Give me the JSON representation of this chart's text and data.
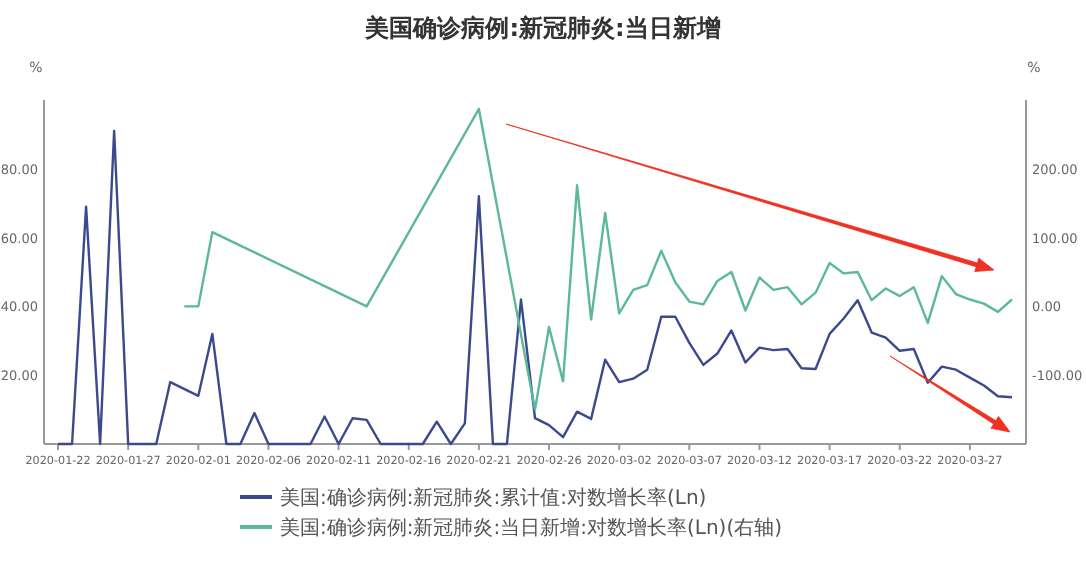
{
  "chart_data": {
    "type": "line",
    "title": "美国确诊病例:新冠肺炎:当日新增",
    "ylabel": "%",
    "y2label": "%",
    "xlim": [
      "2020-01-21",
      "2020-03-31"
    ],
    "xticks": [
      "2020-01-22",
      "2020-01-27",
      "2020-02-01",
      "2020-02-06",
      "2020-02-11",
      "2020-02-16",
      "2020-02-21",
      "2020-02-26",
      "2020-03-02",
      "2020-03-07",
      "2020-03-12",
      "2020-03-17",
      "2020-03-22",
      "2020-03-27"
    ],
    "ylim": [
      0,
      100
    ],
    "yticks": [
      {
        "value": 20,
        "label": "20.00"
      },
      {
        "value": 40,
        "label": "40.00"
      },
      {
        "value": 60,
        "label": "60.00"
      },
      {
        "value": 80,
        "label": "80.00"
      }
    ],
    "y2lim": [
      -200,
      300
    ],
    "y2ticks": [
      {
        "value": -100,
        "label": "-100.00"
      },
      {
        "value": 0,
        "label": "0.00"
      },
      {
        "value": 100,
        "label": "100.00"
      },
      {
        "value": 200,
        "label": "200.00"
      }
    ],
    "legend": "bottom",
    "grid": false,
    "series": [
      {
        "name": "美国:确诊病例:新冠肺炎:累计值:对数增长率(Ln)",
        "color": "#3b4a8c",
        "x": [
          "2020-01-22",
          "2020-01-23",
          "2020-01-24",
          "2020-01-25",
          "2020-01-26",
          "2020-01-27",
          "2020-01-28",
          "2020-01-29",
          "2020-01-30",
          "2020-02-01",
          "2020-02-02",
          "2020-02-03",
          "2020-02-04",
          "2020-02-05",
          "2020-02-06",
          "2020-02-07",
          "2020-02-08",
          "2020-02-09",
          "2020-02-10",
          "2020-02-11",
          "2020-02-12",
          "2020-02-13",
          "2020-02-14",
          "2020-02-15",
          "2020-02-16",
          "2020-02-17",
          "2020-02-18",
          "2020-02-19",
          "2020-02-20",
          "2020-02-21",
          "2020-02-22",
          "2020-02-23",
          "2020-02-24",
          "2020-02-25",
          "2020-02-26",
          "2020-02-27",
          "2020-02-28",
          "2020-02-29",
          "2020-03-01",
          "2020-03-02",
          "2020-03-03",
          "2020-03-04",
          "2020-03-05",
          "2020-03-06",
          "2020-03-07",
          "2020-03-08",
          "2020-03-09",
          "2020-03-10",
          "2020-03-11",
          "2020-03-12",
          "2020-03-13",
          "2020-03-14",
          "2020-03-15",
          "2020-03-16",
          "2020-03-17",
          "2020-03-18",
          "2020-03-19",
          "2020-03-20",
          "2020-03-21",
          "2020-03-22",
          "2020-03-23",
          "2020-03-24",
          "2020-03-25",
          "2020-03-26",
          "2020-03-27",
          "2020-03-28",
          "2020-03-29",
          "2020-03-30"
        ],
        "values": [
          0,
          0,
          69,
          0,
          91,
          0,
          0,
          0,
          18,
          14,
          32,
          0,
          0,
          9,
          0,
          0,
          0,
          0,
          8,
          0,
          7.5,
          7,
          0,
          0,
          0,
          0,
          6.5,
          0,
          6,
          72,
          0,
          0,
          42,
          7.5,
          5.5,
          2,
          9.4,
          7.3,
          24.5,
          18,
          19,
          21.6,
          37,
          37,
          29.4,
          23,
          26.3,
          33,
          23.7,
          28,
          27.3,
          27.6,
          22,
          21.8,
          32,
          36.5,
          41.8,
          32.4,
          30.9,
          27.1,
          27.6,
          17.8,
          22.5,
          21.6,
          19.3,
          17,
          13.9,
          13.6
        ]
      },
      {
        "name": "美国:确诊病例:新冠肺炎:当日新增:对数增长率(Ln)(右轴)",
        "color": "#5cb89c",
        "axis": "y2",
        "x": [
          "2020-01-31",
          "2020-02-01",
          "2020-02-02",
          "2020-02-13",
          "2020-02-21",
          "2020-02-25",
          "2020-02-26",
          "2020-02-27",
          "2020-02-28",
          "2020-02-29",
          "2020-03-01",
          "2020-03-02",
          "2020-03-03",
          "2020-03-04",
          "2020-03-05",
          "2020-03-06",
          "2020-03-07",
          "2020-03-08",
          "2020-03-09",
          "2020-03-10",
          "2020-03-11",
          "2020-03-12",
          "2020-03-13",
          "2020-03-14",
          "2020-03-15",
          "2020-03-16",
          "2020-03-17",
          "2020-03-18",
          "2020-03-19",
          "2020-03-20",
          "2020-03-21",
          "2020-03-22",
          "2020-03-23",
          "2020-03-24",
          "2020-03-25",
          "2020-03-26",
          "2020-03-27",
          "2020-03-28",
          "2020-03-29",
          "2020-03-30"
        ],
        "values": [
          0,
          0,
          108,
          0,
          287,
          -150,
          -30,
          -109,
          176,
          -19,
          136,
          -10,
          24,
          31,
          81,
          35,
          7,
          3,
          37,
          50,
          -6,
          42,
          24,
          28,
          3,
          20,
          63,
          48,
          50,
          9,
          26,
          15,
          28,
          -24,
          44,
          18,
          10,
          4,
          -8,
          10
        ]
      }
    ]
  }
}
